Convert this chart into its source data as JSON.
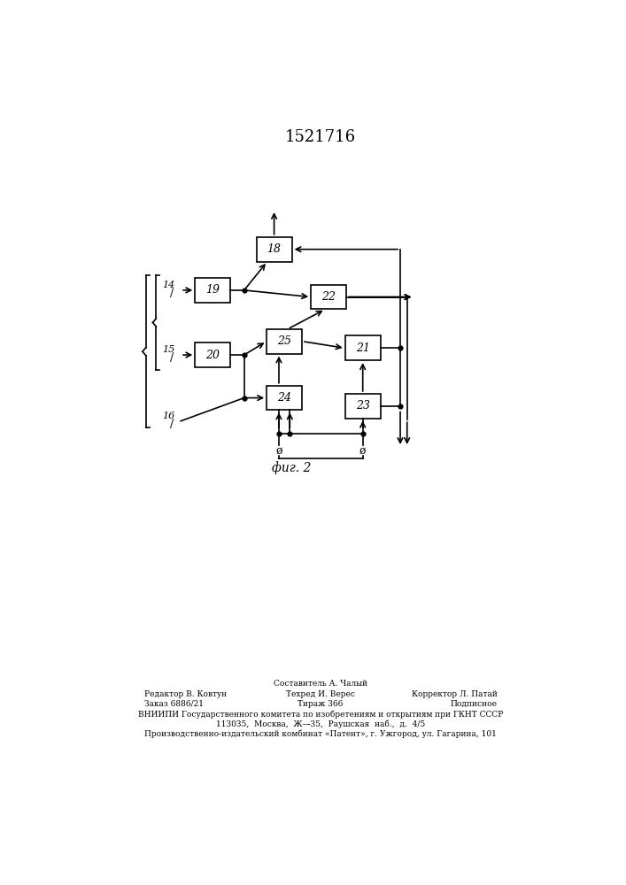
{
  "title": "1521716",
  "fig_label": "фиг. 2",
  "background_color": "#ffffff",
  "footer_line0_center": "Составитель А. Чалый",
  "footer_line1_left": "Редактор В. Ковтун",
  "footer_line1_center": "Техред И. Верес",
  "footer_line1_right": "Корректор Л. Патай",
  "footer_line2_left": "Заказ 6886/21",
  "footer_line2_center": "Тираж 366",
  "footer_line2_right": "Подписное",
  "footer_line3": "ВНИИПИ Государственного комитета по изобретениям и открытиям при ГКНТ СССР",
  "footer_line4": "113035,  Москва,  Ж—̵35,  Раушская  наб.,  д.  4/5",
  "footer_line5": "Производственно-издательский комбинат «Патент», г. Ужгород, ул. Гагарина, 101"
}
